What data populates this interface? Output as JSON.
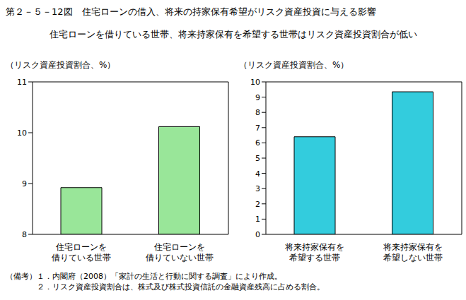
{
  "title": "第２－５－12図　住宅ローンの借入、将来の持家保有希望がリスク資産投資に与える影響",
  "subtitle": "住宅ローンを借りている世帯、将来持家保有を希望する世帯はリスク資産投資割合が低い",
  "notes_label": "（備考）",
  "notes": [
    "１．内閣府（2008）「家計の生活と行動に関する調査」により作成。",
    "２．リスク資産投資割合は、株式及び株式投資信託の金融資産残高に占める割合。"
  ],
  "chart_data": [
    {
      "type": "bar",
      "y_label": "（リスク資産投資割合、%）",
      "categories": [
        "住宅ローンを\n借りている世帯",
        "住宅ローンを\n借りていない世帯"
      ],
      "values": [
        8.92,
        10.12
      ],
      "color": "#99e699",
      "ylim": [
        8,
        11
      ],
      "yticks": [
        8,
        9,
        10,
        11
      ]
    },
    {
      "type": "bar",
      "y_label": "（リスク資産投資割合、%）",
      "categories": [
        "将来持家保有を\n希望する世帯",
        "将来持家保有を\n希望しない世帯"
      ],
      "values": [
        6.4,
        9.35
      ],
      "color": "#33ccdd",
      "ylim": [
        0,
        10
      ],
      "yticks": [
        0,
        1,
        2,
        3,
        4,
        5,
        6,
        7,
        8,
        9,
        10
      ]
    }
  ]
}
